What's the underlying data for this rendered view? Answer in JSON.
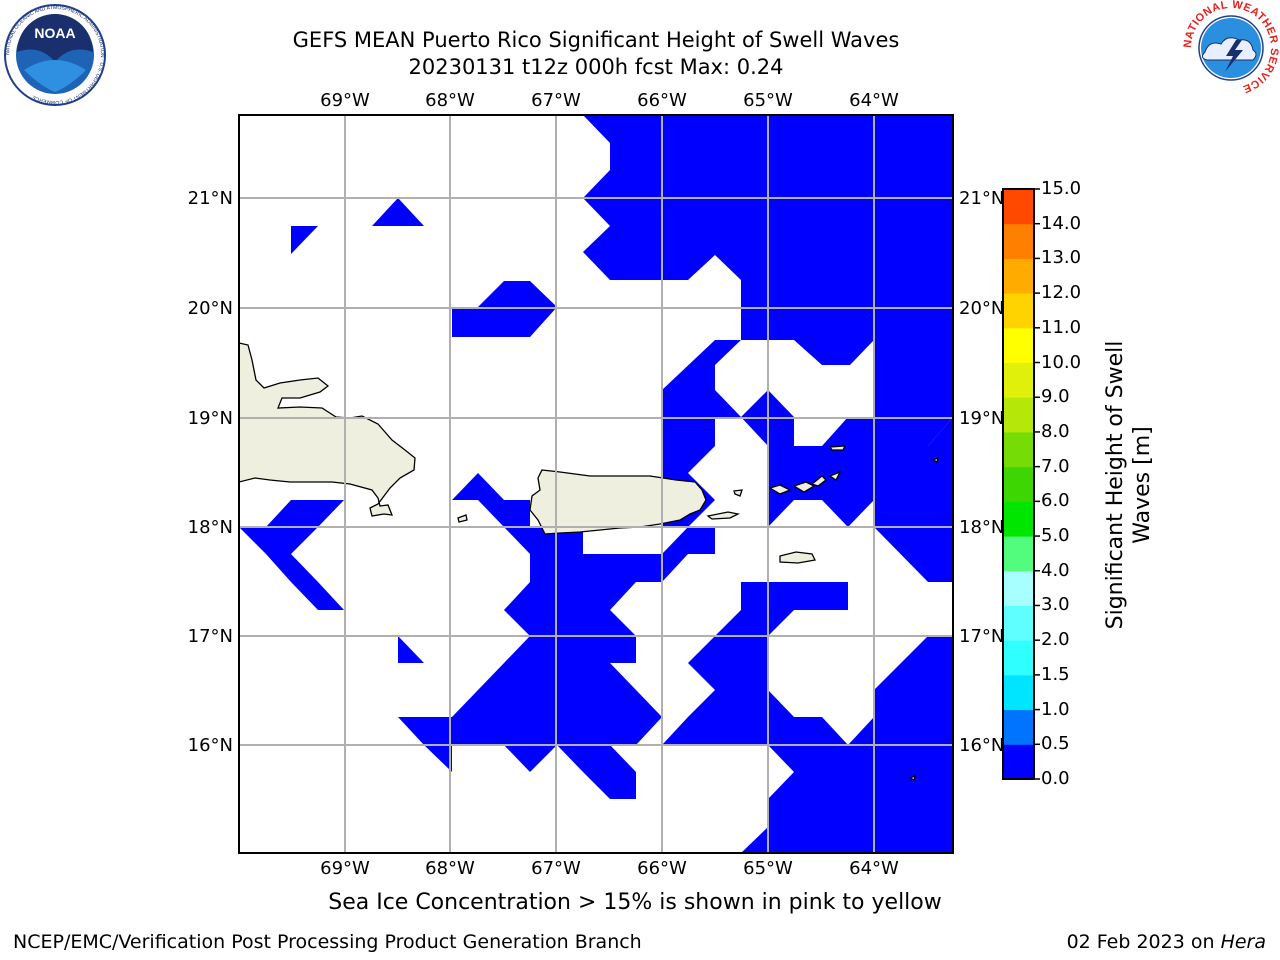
{
  "header": {
    "title_line1": "GEFS MEAN Puerto Rico Significant Height of Swell Waves",
    "title_line2": "20230131 t12z 000h fcst   Max: 0.24"
  },
  "logos": {
    "noaa_text": "NOAA",
    "noaa_ring_text": "NATIONAL OCEANIC AND ATMOSPHERIC ADMINISTRATION · U.S. DEPARTMENT OF COMMERCE",
    "nws_ring_text": "NATIONAL WEATHER SERVICE"
  },
  "map": {
    "lon_labels": [
      "69°W",
      "68°W",
      "67°W",
      "66°W",
      "65°W",
      "64°W"
    ],
    "lat_labels": [
      "21°N",
      "20°N",
      "19°N",
      "18°N",
      "17°N",
      "16°N"
    ],
    "extent": {
      "lon_min": -70.0,
      "lon_max": -63.25,
      "lat_min": 15.0,
      "lat_max": 21.75
    },
    "gridlines": true,
    "land_color": "#efefdf",
    "swell_color": "#0000ff",
    "swell_regions_note": "",
    "land_masses": [
      "Hispaniola",
      "Puerto Rico",
      "Virgin Islands",
      "St. Croix",
      "Mona Island"
    ]
  },
  "colorbar": {
    "title": "Significant Height of Swell Waves [m]",
    "levels": [
      "0.0",
      "0.5",
      "1.0",
      "1.5",
      "2.0",
      "3.0",
      "4.0",
      "5.0",
      "6.0",
      "7.0",
      "8.0",
      "9.0",
      "10.0",
      "11.0",
      "12.0",
      "13.0",
      "14.0",
      "15.0"
    ],
    "colors": [
      "#0000ff",
      "#0073ff",
      "#00e5ff",
      "#30ffff",
      "#5fffff",
      "#a8ffff",
      "#52fd7d",
      "#00e600",
      "#3ed603",
      "#75dd05",
      "#b5e808",
      "#e0f00a",
      "#ffff00",
      "#ffd300",
      "#ffab00",
      "#ff7f00",
      "#ff4800",
      "#ff0000"
    ]
  },
  "footer": {
    "note": "Sea Ice Concentration > 15% is shown in pink to yellow",
    "left": "NCEP/EMC/Verification Post Processing Product Generation Branch",
    "date": "02 Feb 2023 on ",
    "machine": "Hera"
  }
}
